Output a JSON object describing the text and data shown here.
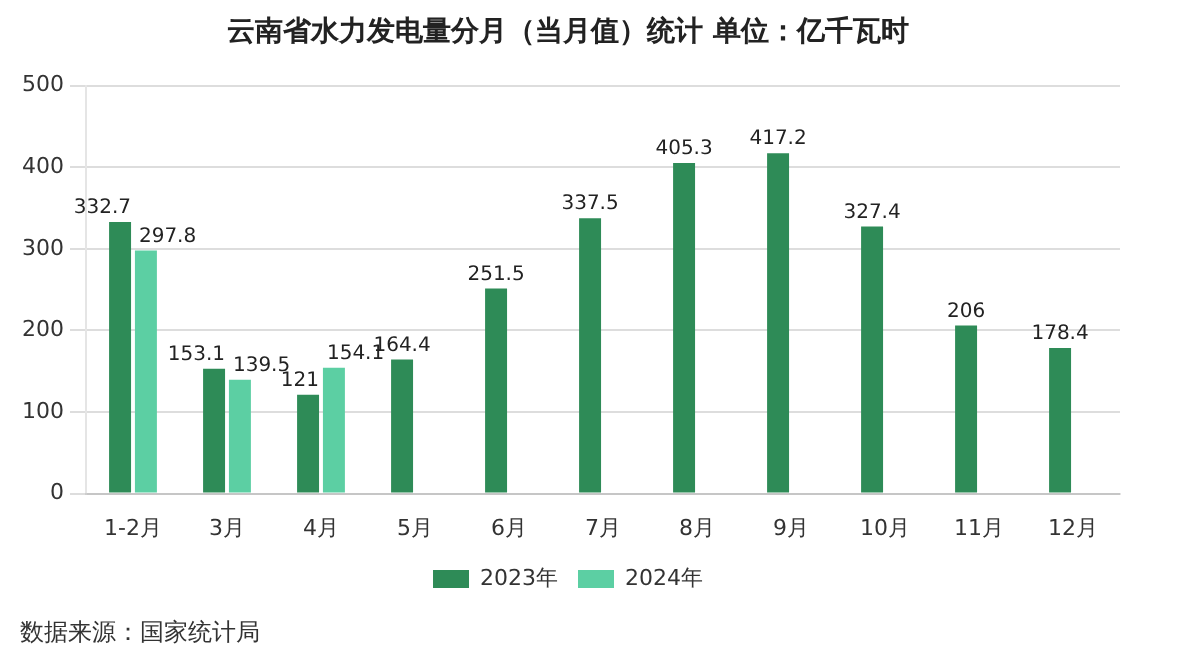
{
  "chart_data": {
    "type": "bar",
    "title": "云南省水力发电量分月（当月值）统计 单位：亿千瓦时",
    "categories": [
      "1-2月",
      "3月",
      "4月",
      "5月",
      "6月",
      "7月",
      "8月",
      "9月",
      "10月",
      "11月",
      "12月"
    ],
    "series": [
      {
        "name": "2023年",
        "color": "#2e8b57",
        "values": [
          332.7,
          153.1,
          121,
          164.4,
          251.5,
          337.5,
          405.3,
          417.2,
          327.4,
          206,
          178.4
        ]
      },
      {
        "name": "2024年",
        "color": "#5ccfa3",
        "values": [
          297.8,
          139.5,
          154.1,
          null,
          null,
          null,
          null,
          null,
          null,
          null,
          null
        ]
      }
    ],
    "ylim": [
      0,
      500
    ],
    "yticks": [
      0,
      100,
      200,
      300,
      400,
      500
    ],
    "grid": "y",
    "legend": "bottom",
    "data_labels": true,
    "annotations": [
      "数据来源：国家统计局"
    ]
  }
}
